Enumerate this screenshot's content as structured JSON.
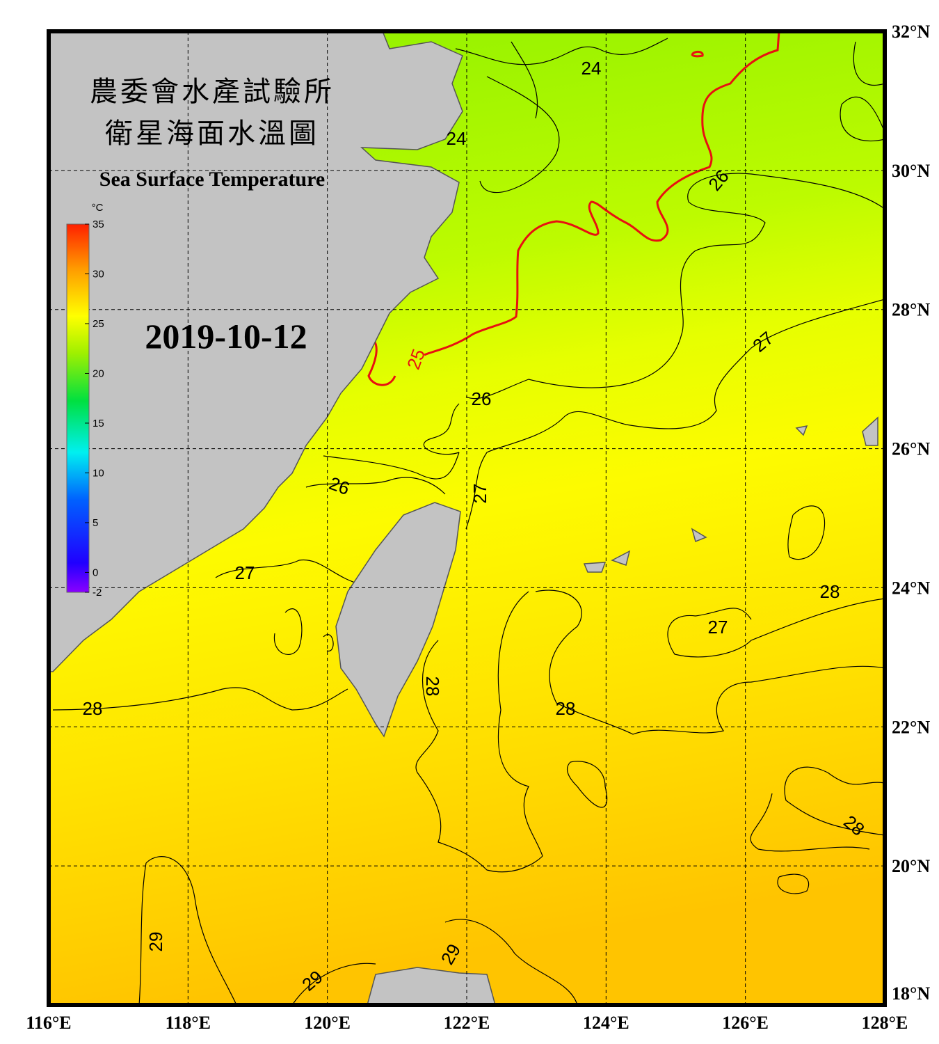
{
  "header": {
    "title_line1": "農委會水產試驗所",
    "title_line2": "衛星海面水溫圖",
    "subtitle": "Sea Surface Temperature",
    "date": "2019-10-12"
  },
  "map": {
    "lon_ticks": [
      {
        "value": 116,
        "label": "116°E"
      },
      {
        "value": 118,
        "label": "118°E"
      },
      {
        "value": 120,
        "label": "120°E"
      },
      {
        "value": 122,
        "label": "122°E"
      },
      {
        "value": 124,
        "label": "124°E"
      },
      {
        "value": 126,
        "label": "126°E"
      },
      {
        "value": 128,
        "label": "128°E"
      }
    ],
    "lat_ticks": [
      {
        "value": 18,
        "label": "18°N"
      },
      {
        "value": 20,
        "label": "20°N"
      },
      {
        "value": 22,
        "label": "22°N"
      },
      {
        "value": 24,
        "label": "24°N"
      },
      {
        "value": 26,
        "label": "26°N"
      },
      {
        "value": 28,
        "label": "28°N"
      },
      {
        "value": 30,
        "label": "30°N"
      },
      {
        "value": 32,
        "label": "32°N"
      }
    ],
    "colorbar": {
      "unit": "°C",
      "ticks": [
        35,
        30,
        25,
        20,
        15,
        10,
        5,
        0,
        -2
      ]
    },
    "contour_labels": [
      24,
      24,
      26,
      27,
      25,
      26,
      26,
      27,
      27,
      28,
      27,
      28,
      28,
      28,
      28,
      29,
      29,
      29
    ]
  }
}
